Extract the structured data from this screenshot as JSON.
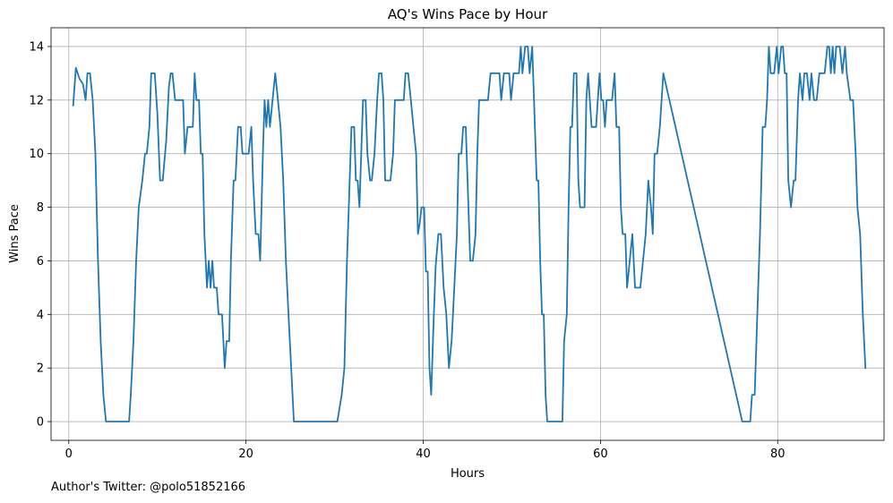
{
  "chart_data": {
    "type": "line",
    "title": "AQ's Wins Pace by Hour",
    "xlabel": "Hours",
    "ylabel": "Wins Pace",
    "xlim": [
      -2,
      92
    ],
    "ylim": [
      -0.7,
      14.7
    ],
    "xticks": [
      0,
      20,
      40,
      60,
      80
    ],
    "yticks": [
      0,
      2,
      4,
      6,
      8,
      10,
      12,
      14
    ],
    "grid": true,
    "series": [
      {
        "color": "#1f77b4",
        "points": [
          [
            0.5,
            11.8
          ],
          [
            0.8,
            13.2
          ],
          [
            1.2,
            12.8
          ],
          [
            1.6,
            12.6
          ],
          [
            1.9,
            12.0
          ],
          [
            2.1,
            13.0
          ],
          [
            2.4,
            13.0
          ],
          [
            2.7,
            12.0
          ],
          [
            3.0,
            10.0
          ],
          [
            3.3,
            6.0
          ],
          [
            3.6,
            3.0
          ],
          [
            3.9,
            1.0
          ],
          [
            4.2,
            0.0
          ],
          [
            5.0,
            0.0
          ],
          [
            6.0,
            0.0
          ],
          [
            6.8,
            0.0
          ],
          [
            7.0,
            1.0
          ],
          [
            7.3,
            3.0
          ],
          [
            7.6,
            6.0
          ],
          [
            7.9,
            8.0
          ],
          [
            8.3,
            9.0
          ],
          [
            8.6,
            10.0
          ],
          [
            8.8,
            10.0
          ],
          [
            9.1,
            11.0
          ],
          [
            9.3,
            13.0
          ],
          [
            9.7,
            13.0
          ],
          [
            10.0,
            11.5
          ],
          [
            10.3,
            9.0
          ],
          [
            10.6,
            9.0
          ],
          [
            11.0,
            10.5
          ],
          [
            11.3,
            12.5
          ],
          [
            11.5,
            13.0
          ],
          [
            11.7,
            13.0
          ],
          [
            12.0,
            12.0
          ],
          [
            12.3,
            12.0
          ],
          [
            12.6,
            12.0
          ],
          [
            12.9,
            12.0
          ],
          [
            13.1,
            10.0
          ],
          [
            13.4,
            11.0
          ],
          [
            13.7,
            11.0
          ],
          [
            14.0,
            11.0
          ],
          [
            14.2,
            13.0
          ],
          [
            14.4,
            12.0
          ],
          [
            14.7,
            12.0
          ],
          [
            14.9,
            10.0
          ],
          [
            15.1,
            10.0
          ],
          [
            15.3,
            7.0
          ],
          [
            15.6,
            5.0
          ],
          [
            15.8,
            6.0
          ],
          [
            16.0,
            5.0
          ],
          [
            16.2,
            6.0
          ],
          [
            16.4,
            5.0
          ],
          [
            16.7,
            5.0
          ],
          [
            16.9,
            4.0
          ],
          [
            17.3,
            4.0
          ],
          [
            17.6,
            2.0
          ],
          [
            17.8,
            3.0
          ],
          [
            18.1,
            3.0
          ],
          [
            18.3,
            6.0
          ],
          [
            18.6,
            9.0
          ],
          [
            18.8,
            9.0
          ],
          [
            19.1,
            11.0
          ],
          [
            19.4,
            11.0
          ],
          [
            19.6,
            10.0
          ],
          [
            20.0,
            10.0
          ],
          [
            20.3,
            10.0
          ],
          [
            20.6,
            11.0
          ],
          [
            20.8,
            9.0
          ],
          [
            21.1,
            7.0
          ],
          [
            21.4,
            7.0
          ],
          [
            21.6,
            6.0
          ],
          [
            21.9,
            10.0
          ],
          [
            22.1,
            12.0
          ],
          [
            22.3,
            11.0
          ],
          [
            22.5,
            12.0
          ],
          [
            22.7,
            11.0
          ],
          [
            23.0,
            12.0
          ],
          [
            23.3,
            13.0
          ],
          [
            23.6,
            12.0
          ],
          [
            23.9,
            11.0
          ],
          [
            24.2,
            9.0
          ],
          [
            24.5,
            6.0
          ],
          [
            24.8,
            4.0
          ],
          [
            25.1,
            2.0
          ],
          [
            25.4,
            0.0
          ],
          [
            26.0,
            0.0
          ],
          [
            27.5,
            0.0
          ],
          [
            29.0,
            0.0
          ],
          [
            30.3,
            0.0
          ],
          [
            30.8,
            1.0
          ],
          [
            31.1,
            2.0
          ],
          [
            31.4,
            6.0
          ],
          [
            31.7,
            9.0
          ],
          [
            31.9,
            11.0
          ],
          [
            32.2,
            11.0
          ],
          [
            32.4,
            9.0
          ],
          [
            32.6,
            9.0
          ],
          [
            32.8,
            8.0
          ],
          [
            33.0,
            10.0
          ],
          [
            33.2,
            12.0
          ],
          [
            33.5,
            12.0
          ],
          [
            33.7,
            10.0
          ],
          [
            34.0,
            9.0
          ],
          [
            34.2,
            9.0
          ],
          [
            34.5,
            10.0
          ],
          [
            34.8,
            12.0
          ],
          [
            35.0,
            13.0
          ],
          [
            35.3,
            13.0
          ],
          [
            35.5,
            12.0
          ],
          [
            35.7,
            9.0
          ],
          [
            36.0,
            9.0
          ],
          [
            36.3,
            9.0
          ],
          [
            36.6,
            10.0
          ],
          [
            36.8,
            12.0
          ],
          [
            37.1,
            12.0
          ],
          [
            37.5,
            12.0
          ],
          [
            37.8,
            12.0
          ],
          [
            38.0,
            13.0
          ],
          [
            38.3,
            13.0
          ],
          [
            38.6,
            12.0
          ],
          [
            38.9,
            11.0
          ],
          [
            39.2,
            10.0
          ],
          [
            39.4,
            7.0
          ],
          [
            39.6,
            7.4
          ],
          [
            39.8,
            8.0
          ],
          [
            40.1,
            8.0
          ],
          [
            40.3,
            5.6
          ],
          [
            40.5,
            5.6
          ],
          [
            40.7,
            2.0
          ],
          [
            40.9,
            1.0
          ],
          [
            41.2,
            4.0
          ],
          [
            41.4,
            5.8
          ],
          [
            41.7,
            7.0
          ],
          [
            42.0,
            7.0
          ],
          [
            42.3,
            5.0
          ],
          [
            42.6,
            4.0
          ],
          [
            42.9,
            2.0
          ],
          [
            43.2,
            3.0
          ],
          [
            43.5,
            5.0
          ],
          [
            43.8,
            7.0
          ],
          [
            44.0,
            10.0
          ],
          [
            44.3,
            10.0
          ],
          [
            44.5,
            11.0
          ],
          [
            44.8,
            11.0
          ],
          [
            45.0,
            9.0
          ],
          [
            45.3,
            6.0
          ],
          [
            45.6,
            6.0
          ],
          [
            45.9,
            7.0
          ],
          [
            46.1,
            10.0
          ],
          [
            46.3,
            12.0
          ],
          [
            46.6,
            12.0
          ],
          [
            47.0,
            12.0
          ],
          [
            47.3,
            12.0
          ],
          [
            47.6,
            13.0
          ],
          [
            48.0,
            13.0
          ],
          [
            48.3,
            13.0
          ],
          [
            48.6,
            13.0
          ],
          [
            48.8,
            12.0
          ],
          [
            49.1,
            13.0
          ],
          [
            49.4,
            13.0
          ],
          [
            49.7,
            13.0
          ],
          [
            49.9,
            12.0
          ],
          [
            50.2,
            13.0
          ],
          [
            50.5,
            13.0
          ],
          [
            50.8,
            13.0
          ],
          [
            51.0,
            14.0
          ],
          [
            51.2,
            13.0
          ],
          [
            51.5,
            14.0
          ],
          [
            51.8,
            14.0
          ],
          [
            52.0,
            13.0
          ],
          [
            52.3,
            14.0
          ],
          [
            52.5,
            12.0
          ],
          [
            52.8,
            9.0
          ],
          [
            53.0,
            9.0
          ],
          [
            53.2,
            6.0
          ],
          [
            53.4,
            4.0
          ],
          [
            53.6,
            4.0
          ],
          [
            53.8,
            1.0
          ],
          [
            54.0,
            0.0
          ],
          [
            55.0,
            0.0
          ],
          [
            55.7,
            0.0
          ],
          [
            55.9,
            3.0
          ],
          [
            56.2,
            4.0
          ],
          [
            56.4,
            8.0
          ],
          [
            56.6,
            11.0
          ],
          [
            56.8,
            11.0
          ],
          [
            57.0,
            13.0
          ],
          [
            57.3,
            13.0
          ],
          [
            57.5,
            9.0
          ],
          [
            57.7,
            8.0
          ],
          [
            58.2,
            8.0
          ],
          [
            58.4,
            12.0
          ],
          [
            58.6,
            13.0
          ],
          [
            58.8,
            12.0
          ],
          [
            59.0,
            11.0
          ],
          [
            59.5,
            11.0
          ],
          [
            59.7,
            12.0
          ],
          [
            59.9,
            13.0
          ],
          [
            60.1,
            12.0
          ],
          [
            60.3,
            12.0
          ],
          [
            60.5,
            11.0
          ],
          [
            60.7,
            12.0
          ],
          [
            61.0,
            12.0
          ],
          [
            61.3,
            12.0
          ],
          [
            61.6,
            13.0
          ],
          [
            61.8,
            11.0
          ],
          [
            62.1,
            11.0
          ],
          [
            62.3,
            8.0
          ],
          [
            62.5,
            7.0
          ],
          [
            62.8,
            7.0
          ],
          [
            63.0,
            5.0
          ],
          [
            63.3,
            6.0
          ],
          [
            63.6,
            7.0
          ],
          [
            63.9,
            5.0
          ],
          [
            64.2,
            5.0
          ],
          [
            64.5,
            5.0
          ],
          [
            64.8,
            6.0
          ],
          [
            65.1,
            7.0
          ],
          [
            65.4,
            9.0
          ],
          [
            65.7,
            8.0
          ],
          [
            65.9,
            7.0
          ],
          [
            66.1,
            10.0
          ],
          [
            66.4,
            10.0
          ],
          [
            66.7,
            11.0
          ],
          [
            67.1,
            13.0
          ],
          [
            76.0,
            0.0
          ],
          [
            76.6,
            0.0
          ],
          [
            76.9,
            0.0
          ],
          [
            77.1,
            1.0
          ],
          [
            77.4,
            1.0
          ],
          [
            77.7,
            4.0
          ],
          [
            78.0,
            7.0
          ],
          [
            78.3,
            11.0
          ],
          [
            78.6,
            11.0
          ],
          [
            78.8,
            12.0
          ],
          [
            79.0,
            14.0
          ],
          [
            79.2,
            13.0
          ],
          [
            79.6,
            13.0
          ],
          [
            79.9,
            14.0
          ],
          [
            80.1,
            13.0
          ],
          [
            80.4,
            14.0
          ],
          [
            80.6,
            14.0
          ],
          [
            80.8,
            13.0
          ],
          [
            81.0,
            13.0
          ],
          [
            81.2,
            9.0
          ],
          [
            81.5,
            8.0
          ],
          [
            81.8,
            9.0
          ],
          [
            82.0,
            9.0
          ],
          [
            82.3,
            12.0
          ],
          [
            82.5,
            13.0
          ],
          [
            82.8,
            12.0
          ],
          [
            83.0,
            13.0
          ],
          [
            83.3,
            13.0
          ],
          [
            83.6,
            12.0
          ],
          [
            83.8,
            13.0
          ],
          [
            84.1,
            12.0
          ],
          [
            84.4,
            12.0
          ],
          [
            84.7,
            13.0
          ],
          [
            85.0,
            13.0
          ],
          [
            85.3,
            13.0
          ],
          [
            85.6,
            14.0
          ],
          [
            85.8,
            14.0
          ],
          [
            86.0,
            13.0
          ],
          [
            86.2,
            14.0
          ],
          [
            86.4,
            13.0
          ],
          [
            86.6,
            14.0
          ],
          [
            87.0,
            14.0
          ],
          [
            87.3,
            13.0
          ],
          [
            87.6,
            14.0
          ],
          [
            87.8,
            13.0
          ],
          [
            88.2,
            12.0
          ],
          [
            88.5,
            12.0
          ],
          [
            88.8,
            10.0
          ],
          [
            89.0,
            8.0
          ],
          [
            89.3,
            7.0
          ],
          [
            89.6,
            4.0
          ],
          [
            89.9,
            2.0
          ]
        ]
      }
    ]
  },
  "credit": "Author's Twitter: @polo51852166"
}
